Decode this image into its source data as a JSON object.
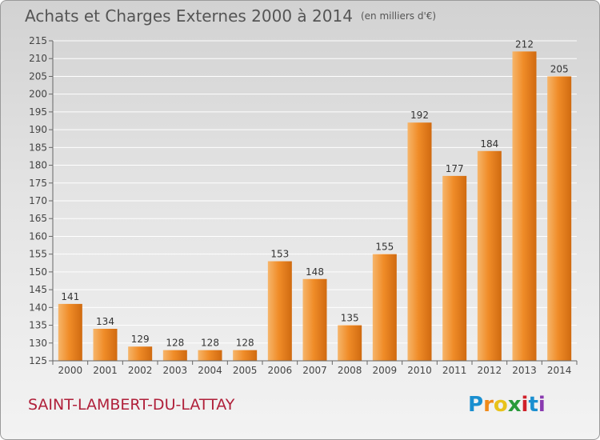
{
  "title": "Achats et Charges Externes 2000 à 2014",
  "unit": "(en milliers d'€)",
  "commune": "SAINT-LAMBERT-DU-LATTAY",
  "brand": {
    "letters": [
      "P",
      "r",
      "o",
      "x",
      "i",
      "t",
      "i"
    ],
    "colors": [
      "#1a8fd0",
      "#f08a1a",
      "#e8c21a",
      "#2a9a3a",
      "#d0202a",
      "#1a8fd0",
      "#8a3ab0"
    ]
  },
  "colors": {
    "bar": "#f08c28",
    "bar_light": "#f6b56a",
    "bar_dark": "#d06a10"
  },
  "chart_data": {
    "type": "bar",
    "categories": [
      "2000",
      "2001",
      "2002",
      "2003",
      "2004",
      "2005",
      "2006",
      "2007",
      "2008",
      "2009",
      "2010",
      "2011",
      "2012",
      "2013",
      "2014"
    ],
    "values": [
      141,
      134,
      129,
      128,
      128,
      128,
      153,
      148,
      135,
      155,
      192,
      177,
      184,
      212,
      205
    ],
    "title": "Achats et Charges Externes 2000 à 2014",
    "xlabel": "",
    "ylabel": "",
    "ylim": [
      125,
      215
    ],
    "yticks": [
      125,
      130,
      135,
      140,
      145,
      150,
      155,
      160,
      165,
      170,
      175,
      180,
      185,
      190,
      195,
      200,
      205,
      210,
      215
    ],
    "grid": true
  }
}
